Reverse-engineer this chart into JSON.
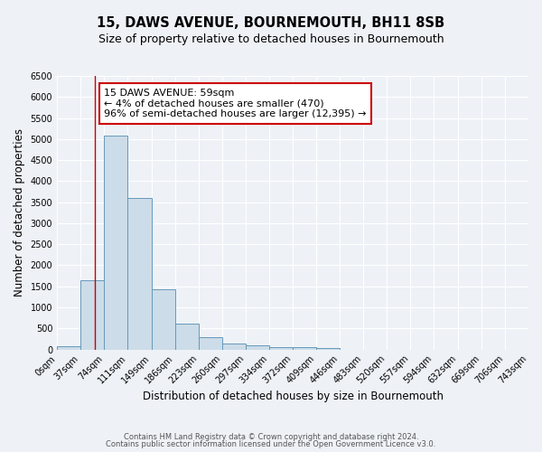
{
  "title": "15, DAWS AVENUE, BOURNEMOUTH, BH11 8SB",
  "subtitle": "Size of property relative to detached houses in Bournemouth",
  "xlabel": "Distribution of detached houses by size in Bournemouth",
  "ylabel": "Number of detached properties",
  "bin_edges": [
    0,
    37,
    74,
    111,
    149,
    186,
    223,
    260,
    297,
    334,
    372,
    409,
    446,
    483,
    520,
    557,
    594,
    632,
    669,
    706,
    743
  ],
  "bar_heights": [
    75,
    1650,
    5075,
    3600,
    1425,
    620,
    300,
    150,
    100,
    60,
    50,
    40,
    0,
    0,
    0,
    0,
    0,
    0,
    0,
    0
  ],
  "bar_color": "#ccdce8",
  "bar_edge_color": "#6699bb",
  "red_line_x": 59,
  "ylim": [
    0,
    6500
  ],
  "yticks": [
    0,
    500,
    1000,
    1500,
    2000,
    2500,
    3000,
    3500,
    4000,
    4500,
    5000,
    5500,
    6000,
    6500
  ],
  "annotation_text": "15 DAWS AVENUE: 59sqm\n← 4% of detached houses are smaller (470)\n96% of semi-detached houses are larger (12,395) →",
  "annotation_box_color": "#ffffff",
  "annotation_box_edge_color": "#cc0000",
  "footer_line1": "Contains HM Land Registry data © Crown copyright and database right 2024.",
  "footer_line2": "Contains public sector information licensed under the Open Government Licence v3.0.",
  "bg_color": "#eef2f7",
  "grid_color": "#ffffff",
  "title_fontsize": 10.5,
  "subtitle_fontsize": 9,
  "tick_label_fontsize": 7,
  "axis_label_fontsize": 8.5,
  "annotation_fontsize": 8,
  "footer_fontsize": 6
}
